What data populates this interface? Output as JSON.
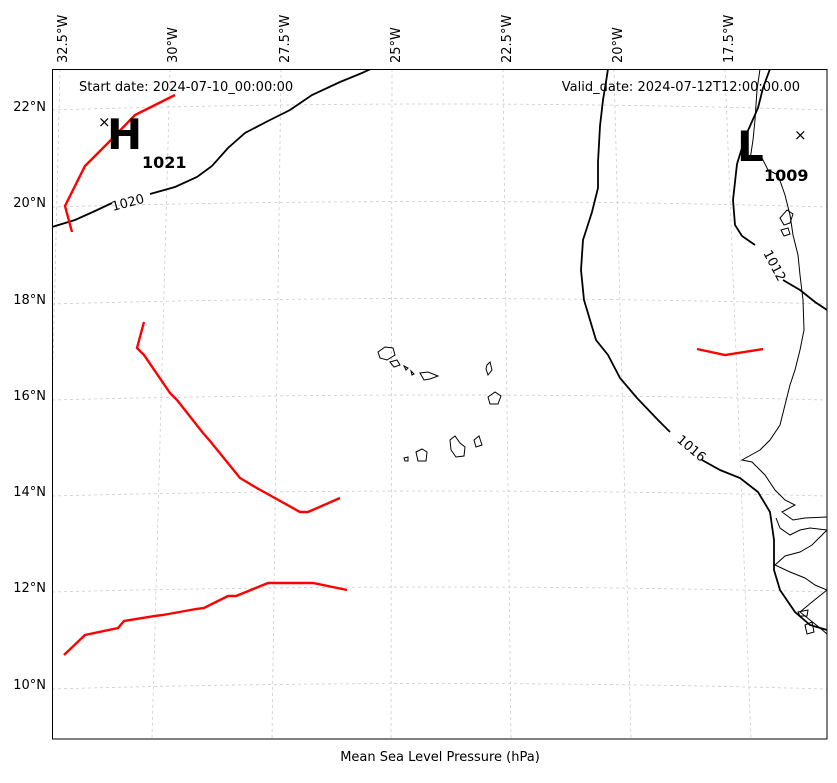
{
  "map": {
    "start_date": "Start date: 2024-07-10_00:00:00",
    "valid_date": "Valid_date: 2024-07-12T12:00:00.00",
    "xlabel": "Mean Sea Level Pressure (hPa)",
    "lon_ticks": [
      "32.5°W",
      "30°W",
      "27.5°W",
      "25°W",
      "22.5°W",
      "20°W",
      "17.5°W"
    ],
    "lat_ticks": [
      "22°N",
      "20°N",
      "18°N",
      "16°N",
      "14°N",
      "12°N",
      "10°N"
    ],
    "pressure_systems": [
      {
        "type": "H",
        "value": "1021"
      },
      {
        "type": "L",
        "value": "1009"
      }
    ],
    "isobar_labels": [
      "1020",
      "1016",
      "1012"
    ],
    "colors": {
      "isobar": "#000000",
      "front": "#ff0000",
      "grid": "#cccccc",
      "coast": "#000000"
    }
  }
}
